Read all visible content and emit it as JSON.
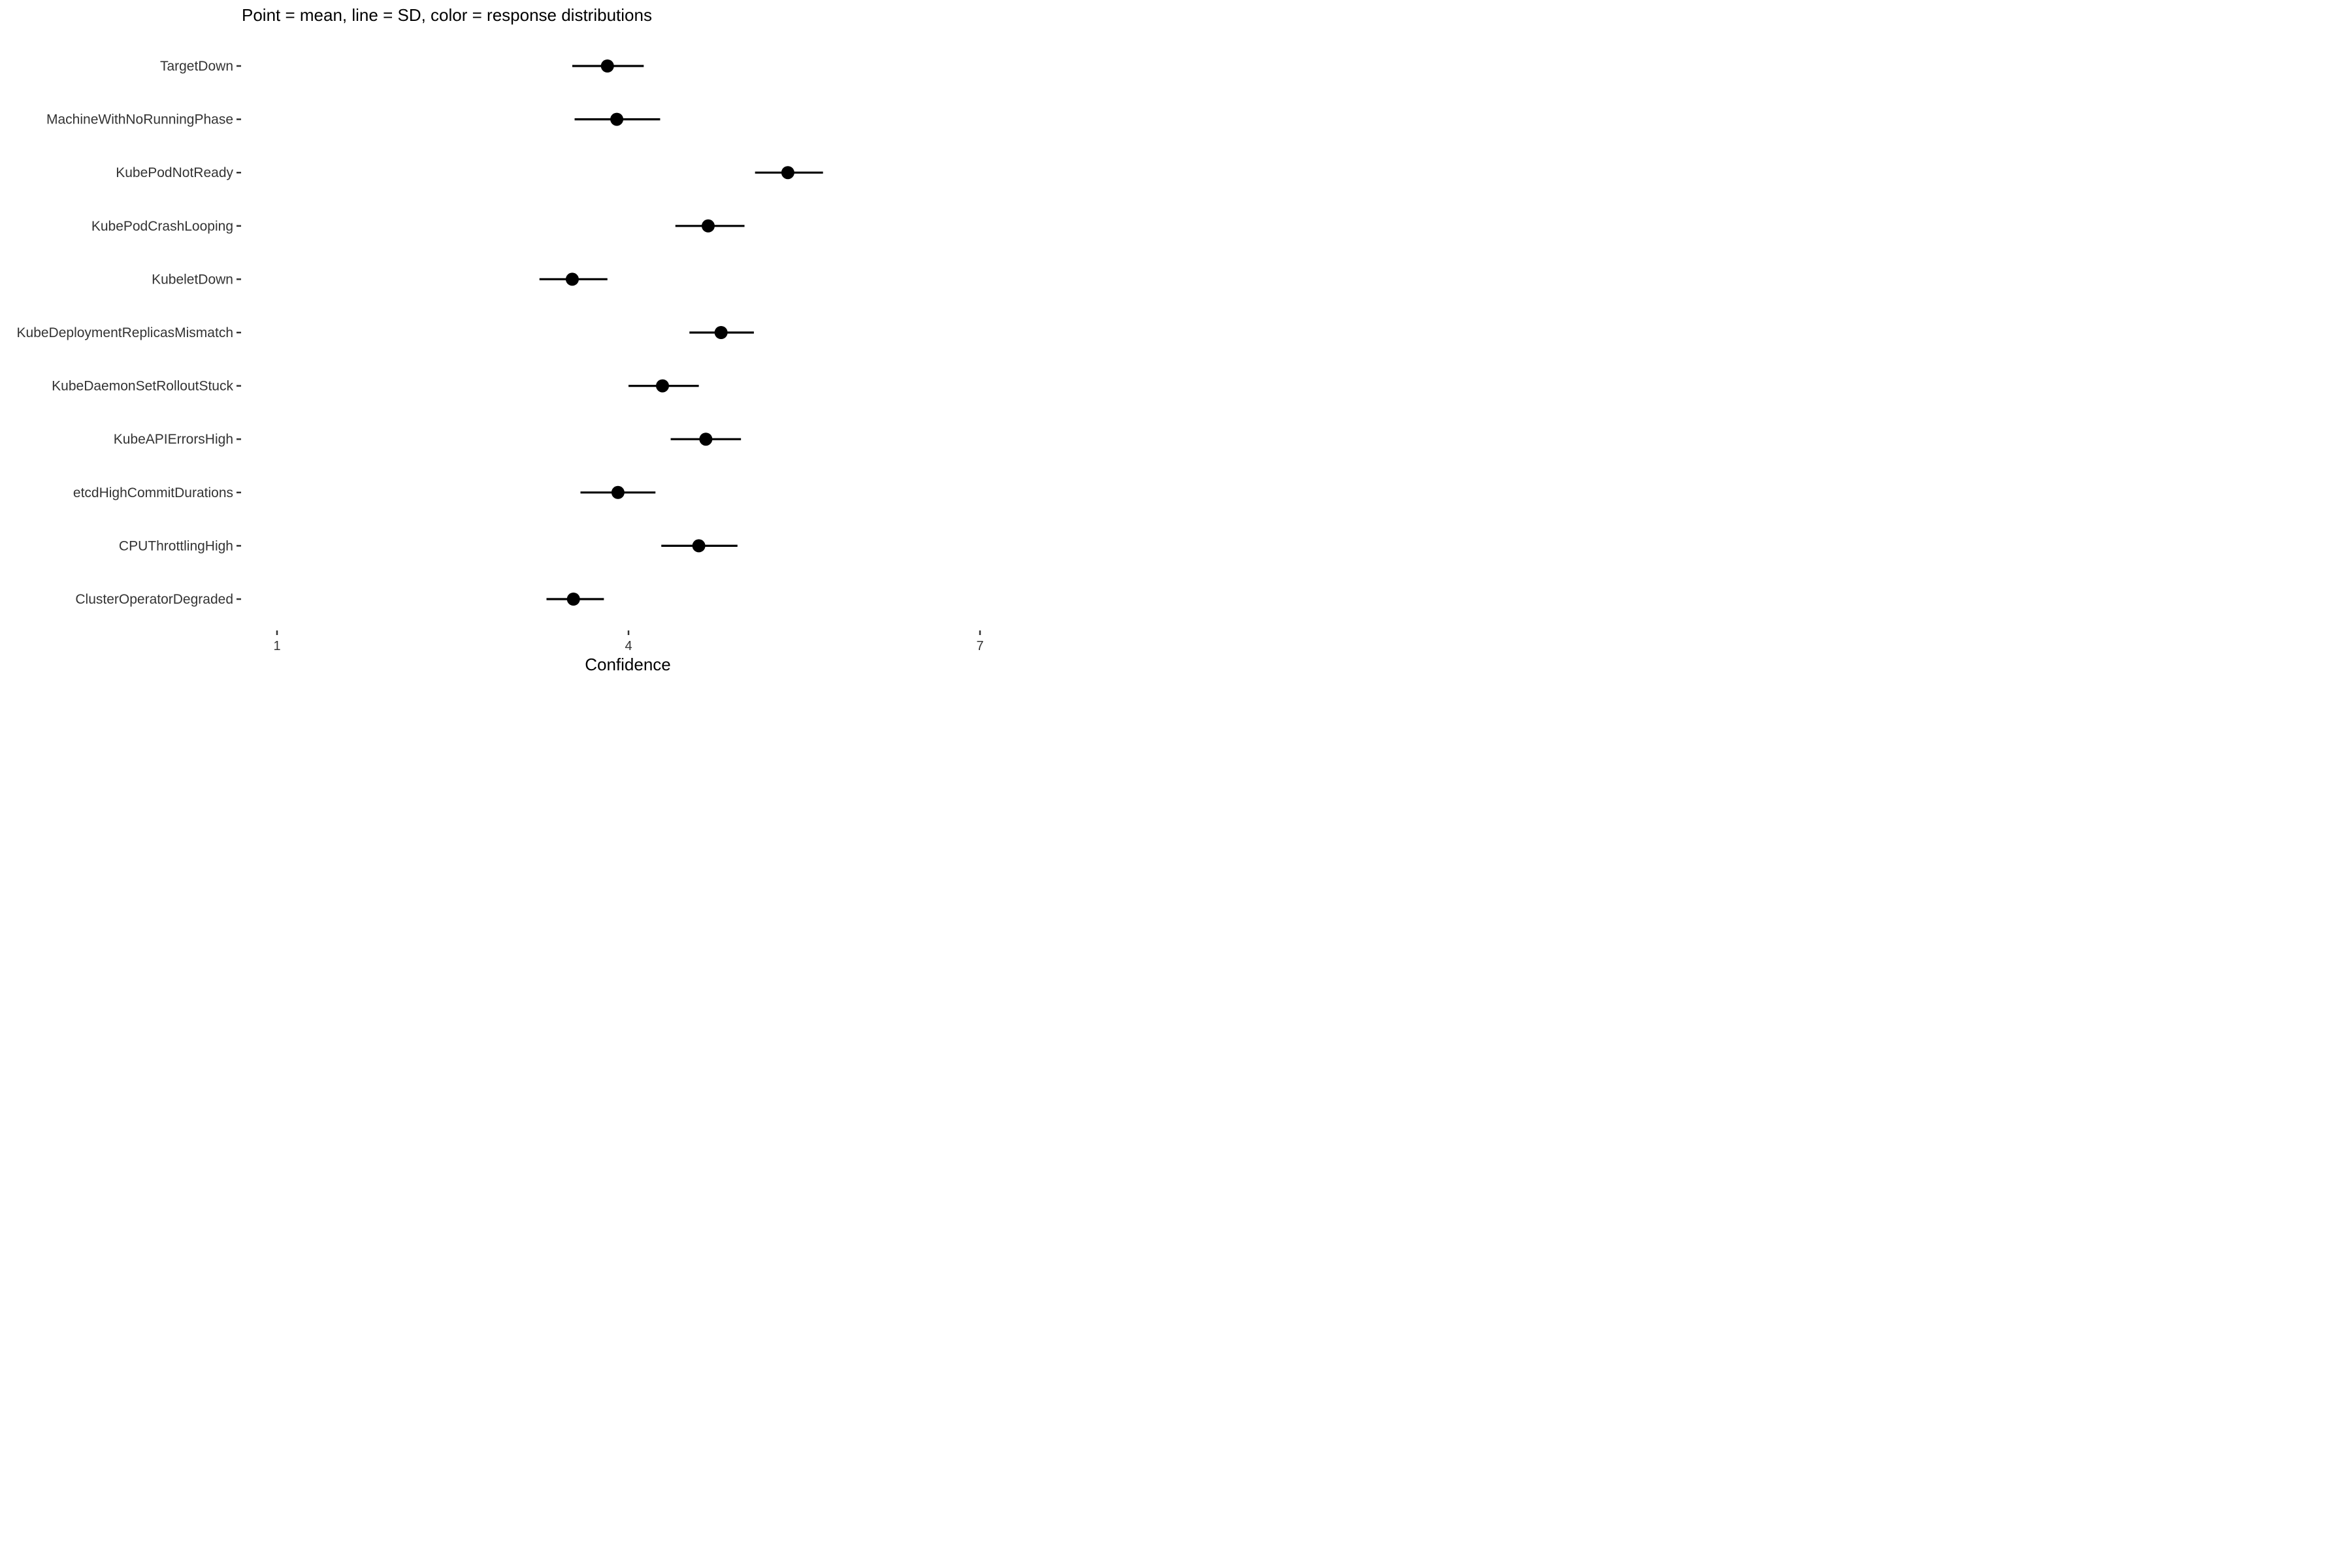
{
  "chart_data": {
    "type": "scatter",
    "title": "Point = mean, line = SD, color = response distributions",
    "xlabel": "Confidence",
    "ylabel": "",
    "xlim": [
      1,
      7
    ],
    "xticks": [
      "1",
      "4",
      "7"
    ],
    "grid": false,
    "categories": [
      "TargetDown",
      "MachineWithNoRunningPhase",
      "KubePodNotReady",
      "KubePodCrashLooping",
      "KubeletDown",
      "KubeDeploymentReplicasMismatch",
      "KubeDaemonSetRolloutStuck",
      "KubeAPIErrorsHigh",
      "etcdHighCommitDurations",
      "CPUThrottlingHigh",
      "ClusterOperatorDegraded"
    ],
    "series": [
      {
        "mean": [
          3.82,
          3.9,
          5.36,
          4.68,
          3.52,
          4.79,
          4.29,
          4.66,
          3.91,
          4.6,
          3.53
        ],
        "sd_low": [
          3.52,
          3.54,
          5.08,
          4.4,
          3.24,
          4.52,
          4.0,
          4.36,
          3.59,
          4.28,
          3.3
        ],
        "sd_high": [
          4.13,
          4.27,
          5.66,
          4.99,
          3.82,
          5.07,
          4.6,
          4.96,
          4.23,
          4.93,
          3.79
        ]
      }
    ],
    "colors": {
      "mark": "#000000",
      "axis": "#333333"
    }
  }
}
